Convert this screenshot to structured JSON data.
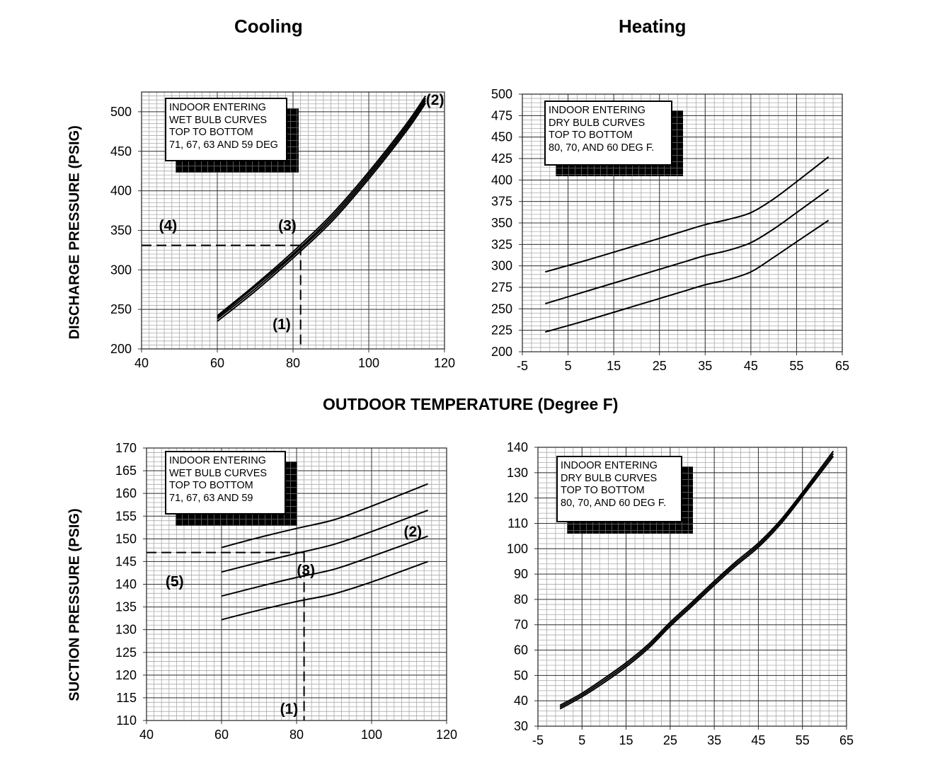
{
  "titles": {
    "cooling": "Cooling",
    "heating": "Heating",
    "xlabel": "OUTDOOR TEMPERATURE (Degree F)"
  },
  "chart_data": [
    {
      "id": "cooling-discharge",
      "type": "line",
      "title": "Cooling",
      "xlabel": "OUTDOOR TEMPERATURE (Degree F)",
      "ylabel": "DISCHARGE PRESSURE (PSIG)",
      "xlim": [
        40,
        120
      ],
      "ylim": [
        200,
        525
      ],
      "xticks": [
        40,
        60,
        80,
        100,
        120
      ],
      "yticks": [
        200,
        250,
        300,
        350,
        400,
        450,
        500
      ],
      "grid": true,
      "legend": [
        "INDOOR ENTERING",
        "WET BULB CURVES",
        "TOP TO BOTTOM",
        "71, 67, 63 AND 59 DEG"
      ],
      "legend_position": "top-left",
      "series": [
        {
          "name": "71",
          "x": [
            60,
            70,
            80,
            90,
            100,
            110,
            115
          ],
          "y": [
            242,
            281,
            323,
            369,
            424,
            485,
            520
          ]
        },
        {
          "name": "67",
          "x": [
            60,
            70,
            80,
            90,
            100,
            110,
            115
          ],
          "y": [
            240,
            279,
            320,
            366,
            421,
            482,
            517
          ]
        },
        {
          "name": "63",
          "x": [
            60,
            70,
            80,
            90,
            100,
            110,
            115
          ],
          "y": [
            238,
            276,
            318,
            363,
            418,
            479,
            514
          ]
        },
        {
          "name": "59",
          "x": [
            60,
            70,
            80,
            90,
            100,
            110,
            115
          ],
          "y": [
            235,
            273,
            315,
            360,
            415,
            476,
            511
          ]
        }
      ],
      "guides": {
        "x": 82,
        "y": 331
      },
      "annotations": [
        {
          "text": "(1)",
          "x": 77,
          "y": 225
        },
        {
          "text": "(2)",
          "x": 117.5,
          "y": 509
        },
        {
          "text": "(3)",
          "x": 78.5,
          "y": 350
        },
        {
          "text": "(4)",
          "x": 47,
          "y": 350
        }
      ]
    },
    {
      "id": "heating-discharge",
      "type": "line",
      "title": "Heating",
      "xlabel": "OUTDOOR TEMPERATURE (Degree F)",
      "ylabel": "",
      "xlim": [
        -5,
        65
      ],
      "ylim": [
        200,
        500
      ],
      "xticks": [
        -5,
        5,
        15,
        25,
        35,
        45,
        55,
        65
      ],
      "yticks": [
        200,
        225,
        250,
        275,
        300,
        325,
        350,
        375,
        400,
        425,
        450,
        475,
        500
      ],
      "grid": true,
      "legend": [
        "INDOOR ENTERING",
        "DRY BULB CURVES",
        "TOP TO BOTTOM",
        "80, 70, AND 60 DEG F."
      ],
      "legend_position": "top-left",
      "series": [
        {
          "name": "80",
          "x": [
            0,
            10,
            20,
            30,
            35,
            40,
            45,
            50,
            55,
            62
          ],
          "y": [
            293,
            308,
            324,
            340,
            348,
            354,
            362,
            378,
            398,
            427
          ]
        },
        {
          "name": "70",
          "x": [
            0,
            10,
            20,
            30,
            35,
            40,
            45,
            50,
            55,
            62
          ],
          "y": [
            256,
            272,
            288,
            304,
            312,
            318,
            327,
            343,
            362,
            389
          ]
        },
        {
          "name": "60",
          "x": [
            0,
            10,
            20,
            30,
            35,
            40,
            45,
            50,
            55,
            62
          ],
          "y": [
            223,
            238,
            254,
            270,
            278,
            284,
            293,
            310,
            328,
            353
          ]
        }
      ],
      "annotations": []
    },
    {
      "id": "cooling-suction",
      "type": "line",
      "title": "",
      "xlabel": "",
      "ylabel": "SUCTION PRESSURE (PSIG)",
      "xlim": [
        40,
        120
      ],
      "ylim": [
        110,
        170
      ],
      "xticks": [
        40,
        60,
        80,
        100,
        120
      ],
      "yticks": [
        110,
        115,
        120,
        125,
        130,
        135,
        140,
        145,
        150,
        155,
        160,
        165,
        170
      ],
      "grid": true,
      "legend": [
        "INDOOR ENTERING",
        "WET BULB CURVES",
        "TOP TO BOTTOM",
        "71, 67, 63 AND 59"
      ],
      "legend_position": "top-left",
      "series": [
        {
          "name": "71",
          "x": [
            60,
            70,
            80,
            90,
            100,
            115
          ],
          "y": [
            148.1,
            150.3,
            152.3,
            154.2,
            157.2,
            162.1
          ]
        },
        {
          "name": "67",
          "x": [
            60,
            70,
            80,
            90,
            100,
            115
          ],
          "y": [
            142.7,
            144.8,
            146.8,
            148.8,
            151.6,
            156.3
          ]
        },
        {
          "name": "63",
          "x": [
            60,
            70,
            80,
            90,
            100,
            115
          ],
          "y": [
            137.4,
            139.5,
            141.5,
            143.3,
            146.1,
            150.6
          ]
        },
        {
          "name": "59",
          "x": [
            60,
            70,
            80,
            90,
            100,
            115
          ],
          "y": [
            132.2,
            134.3,
            136.2,
            137.9,
            140.5,
            145.0
          ]
        }
      ],
      "guides": {
        "x": 82,
        "y": 147
      },
      "annotations": [
        {
          "text": "(1)",
          "x": 78,
          "y": 111.5
        },
        {
          "text": "(2)",
          "x": 111,
          "y": 150.5
        },
        {
          "text": "(3)",
          "x": 82.5,
          "y": 142
        },
        {
          "text": "(5)",
          "x": 47.5,
          "y": 139.5
        }
      ]
    },
    {
      "id": "heating-suction",
      "type": "line",
      "title": "",
      "xlabel": "",
      "ylabel": "",
      "xlim": [
        -5,
        65
      ],
      "ylim": [
        30,
        140
      ],
      "xticks": [
        -5,
        5,
        15,
        25,
        35,
        45,
        55,
        65
      ],
      "yticks": [
        30,
        40,
        50,
        60,
        70,
        80,
        90,
        100,
        110,
        120,
        130,
        140
      ],
      "grid": true,
      "legend": [
        "INDOOR ENTERING",
        "DRY BULB CURVES",
        "TOP TO BOTTOM",
        "80, 70, AND 60 DEG F."
      ],
      "legend_position": "top-left",
      "series": [
        {
          "name": "80",
          "x": [
            0,
            5,
            10,
            15,
            20,
            25,
            30,
            35,
            40,
            45,
            50,
            55,
            62
          ],
          "y": [
            38.2,
            43.0,
            48.8,
            55.0,
            62.2,
            71.0,
            79.0,
            87.2,
            95.0,
            102.2,
            111.2,
            122.2,
            138.5
          ]
        },
        {
          "name": "70",
          "x": [
            0,
            5,
            10,
            15,
            20,
            25,
            30,
            35,
            40,
            45,
            50,
            55,
            62
          ],
          "y": [
            37.5,
            42.3,
            48.0,
            54.2,
            61.4,
            70.2,
            78.2,
            86.4,
            94.2,
            101.4,
            110.4,
            121.4,
            137.5
          ]
        },
        {
          "name": "60",
          "x": [
            0,
            5,
            10,
            15,
            20,
            25,
            30,
            35,
            40,
            45,
            50,
            55,
            62
          ],
          "y": [
            36.8,
            41.6,
            47.2,
            53.4,
            60.6,
            69.4,
            77.4,
            85.6,
            93.4,
            100.6,
            109.6,
            120.6,
            136.5
          ]
        }
      ],
      "annotations": []
    }
  ]
}
